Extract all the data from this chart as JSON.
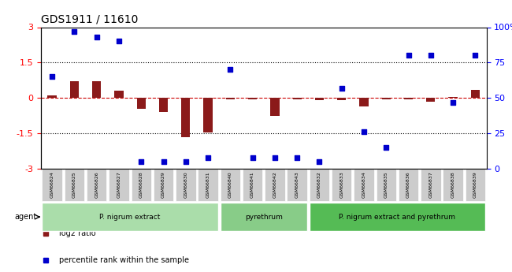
{
  "title": "GDS1911 / 11610",
  "samples": [
    "GSM66824",
    "GSM66825",
    "GSM66826",
    "GSM66827",
    "GSM66828",
    "GSM66829",
    "GSM66830",
    "GSM66831",
    "GSM66840",
    "GSM66841",
    "GSM66842",
    "GSM66843",
    "GSM66832",
    "GSM66833",
    "GSM66834",
    "GSM66835",
    "GSM66836",
    "GSM66837",
    "GSM66838",
    "GSM66839"
  ],
  "log2_ratio": [
    0.1,
    0.7,
    0.7,
    0.3,
    -0.45,
    -0.6,
    -1.65,
    -1.45,
    -0.05,
    -0.05,
    -0.75,
    -0.05,
    -0.1,
    -0.1,
    -0.35,
    -0.05,
    -0.05,
    -0.15,
    0.05,
    0.35
  ],
  "percentile": [
    65,
    97,
    93,
    90,
    5,
    5,
    5,
    8,
    70,
    8,
    8,
    8,
    5,
    57,
    26,
    15,
    80,
    80,
    47,
    80
  ],
  "groups": [
    {
      "label": "P. nigrum extract",
      "start": 0,
      "end": 7,
      "color": "#aaddaa"
    },
    {
      "label": "pyrethrum",
      "start": 8,
      "end": 11,
      "color": "#88cc88"
    },
    {
      "label": "P. nigrum extract and pyrethrum",
      "start": 12,
      "end": 19,
      "color": "#55bb55"
    }
  ],
  "bar_color": "#8b1a1a",
  "dot_color": "#0000cc",
  "ylim": [
    -3,
    3
  ],
  "yticks_left": [
    -3,
    -1.5,
    0,
    1.5,
    3
  ],
  "yticks_right": [
    0,
    25,
    50,
    75,
    100
  ],
  "hline_dotted": [
    1.5,
    -1.5
  ],
  "zero_line_color": "#cc0000",
  "background_color": "#ffffff",
  "legend_items": [
    {
      "label": "log2 ratio",
      "color": "#8b1a1a"
    },
    {
      "label": "percentile rank within the sample",
      "color": "#0000cc"
    }
  ]
}
